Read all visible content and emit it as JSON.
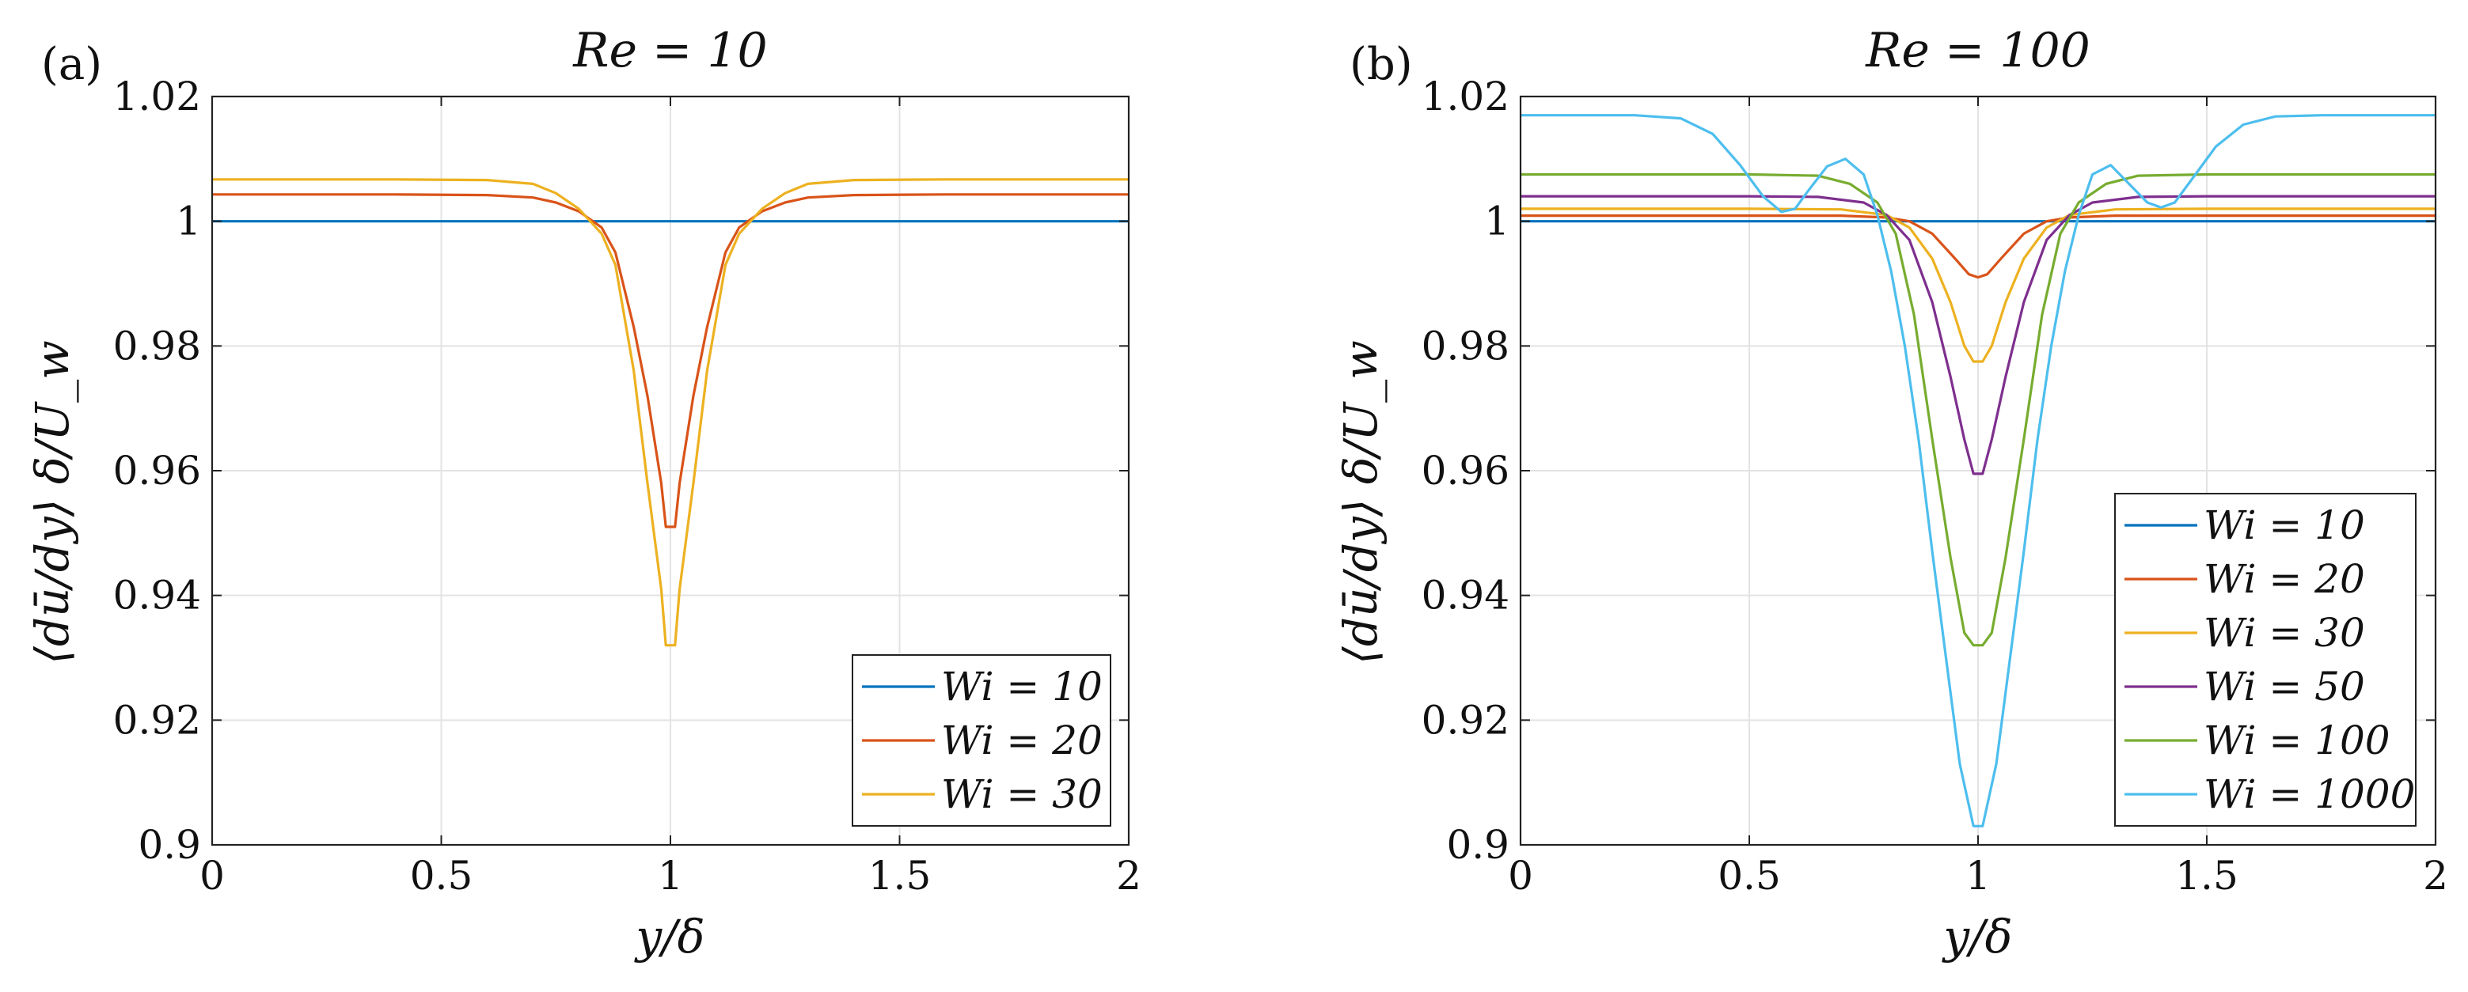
{
  "chart_data": [
    {
      "type": "line",
      "panel_label": "(a)",
      "title": "Re = 10",
      "xlabel": "y/δ",
      "ylabel": "⟨dū/dy⟩ δ/U_w",
      "xlim": [
        0,
        2
      ],
      "ylim": [
        0.9,
        1.02
      ],
      "xticks": [
        0,
        0.5,
        1,
        1.5,
        2
      ],
      "xtick_labels": [
        "0",
        "0.5",
        "1",
        "1.5",
        "2"
      ],
      "yticks": [
        0.9,
        0.92,
        0.94,
        0.96,
        0.98,
        1.0,
        1.02
      ],
      "ytick_labels": [
        "0.9",
        "0.92",
        "0.94",
        "0.96",
        "0.98",
        "1",
        "1.02"
      ],
      "grid": true,
      "legend_position": "bottom-right",
      "series": [
        {
          "name": "Wi = 10",
          "color": "#0072BD",
          "x": [
            0,
            0.5,
            0.8,
            0.9,
            0.95,
            0.98,
            1.0,
            1.02,
            1.05,
            1.1,
            1.2,
            1.5,
            2.0
          ],
          "y": [
            1.0,
            1.0,
            1.0,
            1.0,
            1.0,
            1.0,
            1.0,
            1.0,
            1.0,
            1.0,
            1.0,
            1.0,
            1.0
          ]
        },
        {
          "name": "Wi = 20",
          "color": "#D95319",
          "x": [
            0,
            0.4,
            0.6,
            0.7,
            0.75,
            0.8,
            0.85,
            0.88,
            0.92,
            0.95,
            0.98,
            0.99,
            1.0,
            1.01,
            1.02,
            1.05,
            1.08,
            1.12,
            1.15,
            1.2,
            1.25,
            1.3,
            1.4,
            1.6,
            2.0
          ],
          "y": [
            1.0043,
            1.0043,
            1.0042,
            1.0038,
            1.003,
            1.0016,
            0.999,
            0.995,
            0.983,
            0.972,
            0.958,
            0.951,
            0.951,
            0.951,
            0.958,
            0.972,
            0.983,
            0.995,
            0.999,
            1.0016,
            1.003,
            1.0038,
            1.0042,
            1.0043,
            1.0043
          ]
        },
        {
          "name": "Wi = 30",
          "color": "#EDB120",
          "x": [
            0,
            0.4,
            0.6,
            0.7,
            0.75,
            0.8,
            0.85,
            0.88,
            0.92,
            0.95,
            0.98,
            0.99,
            1.0,
            1.01,
            1.02,
            1.05,
            1.08,
            1.12,
            1.15,
            1.2,
            1.25,
            1.3,
            1.4,
            1.6,
            2.0
          ],
          "y": [
            1.0067,
            1.0067,
            1.0066,
            1.006,
            1.0045,
            1.002,
            0.998,
            0.993,
            0.976,
            0.958,
            0.941,
            0.932,
            0.932,
            0.932,
            0.941,
            0.958,
            0.976,
            0.993,
            0.998,
            1.002,
            1.0045,
            1.006,
            1.0066,
            1.0067,
            1.0067
          ]
        }
      ]
    },
    {
      "type": "line",
      "panel_label": "(b)",
      "title": "Re = 100",
      "xlabel": "y/δ",
      "ylabel": "⟨dū/dy⟩ δ/U_w",
      "xlim": [
        0,
        2
      ],
      "ylim": [
        0.9,
        1.02
      ],
      "xticks": [
        0,
        0.5,
        1,
        1.5,
        2
      ],
      "xtick_labels": [
        "0",
        "0.5",
        "1",
        "1.5",
        "2"
      ],
      "yticks": [
        0.9,
        0.92,
        0.94,
        0.96,
        0.98,
        1.0,
        1.02
      ],
      "ytick_labels": [
        "0.9",
        "0.92",
        "0.94",
        "0.96",
        "0.98",
        "1",
        "1.02"
      ],
      "grid": true,
      "legend_position": "bottom-right",
      "series": [
        {
          "name": "Wi = 10",
          "color": "#0072BD",
          "x": [
            0,
            0.5,
            0.9,
            0.95,
            1.0,
            1.05,
            1.1,
            1.5,
            2.0
          ],
          "y": [
            1.0,
            1.0,
            1.0,
            1.0,
            1.0,
            1.0,
            1.0,
            1.0,
            1.0
          ]
        },
        {
          "name": "Wi = 20",
          "color": "#D95319",
          "x": [
            0,
            0.5,
            0.7,
            0.8,
            0.85,
            0.9,
            0.95,
            0.98,
            1.0,
            1.02,
            1.05,
            1.1,
            1.15,
            1.2,
            1.3,
            1.5,
            2.0
          ],
          "y": [
            1.0009,
            1.0009,
            1.0009,
            1.0006,
            1.0,
            0.998,
            0.994,
            0.9915,
            0.991,
            0.9915,
            0.994,
            0.998,
            1.0,
            1.0006,
            1.0009,
            1.0009,
            1.0009
          ]
        },
        {
          "name": "Wi = 30",
          "color": "#EDB120",
          "x": [
            0,
            0.5,
            0.7,
            0.8,
            0.85,
            0.9,
            0.94,
            0.97,
            0.99,
            1.0,
            1.01,
            1.03,
            1.06,
            1.1,
            1.15,
            1.2,
            1.3,
            1.5,
            2.0
          ],
          "y": [
            1.002,
            1.002,
            1.0019,
            1.001,
            0.999,
            0.994,
            0.987,
            0.98,
            0.9775,
            0.9775,
            0.9775,
            0.98,
            0.987,
            0.994,
            0.999,
            1.001,
            1.0019,
            1.002,
            1.002
          ]
        },
        {
          "name": "Wi = 50",
          "color": "#7E2F8E",
          "x": [
            0,
            0.5,
            0.65,
            0.75,
            0.8,
            0.85,
            0.9,
            0.94,
            0.97,
            0.99,
            1.0,
            1.01,
            1.03,
            1.06,
            1.1,
            1.15,
            1.2,
            1.25,
            1.35,
            1.5,
            2.0
          ],
          "y": [
            1.004,
            1.004,
            1.0039,
            1.003,
            1.001,
            0.997,
            0.987,
            0.975,
            0.965,
            0.9595,
            0.9595,
            0.9595,
            0.965,
            0.975,
            0.987,
            0.997,
            1.001,
            1.003,
            1.0039,
            1.004,
            1.004
          ]
        },
        {
          "name": "Wi = 100",
          "color": "#77AC30",
          "x": [
            0,
            0.5,
            0.65,
            0.72,
            0.78,
            0.82,
            0.86,
            0.9,
            0.94,
            0.97,
            0.99,
            1.0,
            1.01,
            1.03,
            1.06,
            1.1,
            1.14,
            1.18,
            1.22,
            1.28,
            1.35,
            1.5,
            2.0
          ],
          "y": [
            1.0075,
            1.0075,
            1.0073,
            1.006,
            1.003,
            0.998,
            0.985,
            0.965,
            0.946,
            0.934,
            0.932,
            0.932,
            0.932,
            0.934,
            0.946,
            0.965,
            0.985,
            0.998,
            1.003,
            1.006,
            1.0073,
            1.0075,
            1.0075
          ]
        },
        {
          "name": "Wi = 1000",
          "color": "#4DBEEE",
          "x": [
            0,
            0.25,
            0.35,
            0.42,
            0.48,
            0.53,
            0.57,
            0.6,
            0.63,
            0.67,
            0.71,
            0.75,
            0.78,
            0.81,
            0.84,
            0.87,
            0.9,
            0.93,
            0.96,
            0.99,
            1.0,
            1.01,
            1.04,
            1.07,
            1.1,
            1.13,
            1.16,
            1.19,
            1.22,
            1.25,
            1.29,
            1.33,
            1.37,
            1.4,
            1.43,
            1.47,
            1.52,
            1.58,
            1.65,
            1.75,
            2.0
          ],
          "y": [
            1.017,
            1.017,
            1.0165,
            1.014,
            1.009,
            1.004,
            1.0015,
            1.002,
            1.005,
            1.0088,
            1.01,
            1.0075,
            1.001,
            0.992,
            0.98,
            0.965,
            0.947,
            0.93,
            0.913,
            0.903,
            0.903,
            0.903,
            0.913,
            0.93,
            0.947,
            0.965,
            0.98,
            0.992,
            1.001,
            1.0075,
            1.009,
            1.006,
            1.003,
            1.0022,
            1.003,
            1.007,
            1.012,
            1.0155,
            1.0168,
            1.017,
            1.017
          ]
        }
      ]
    }
  ]
}
